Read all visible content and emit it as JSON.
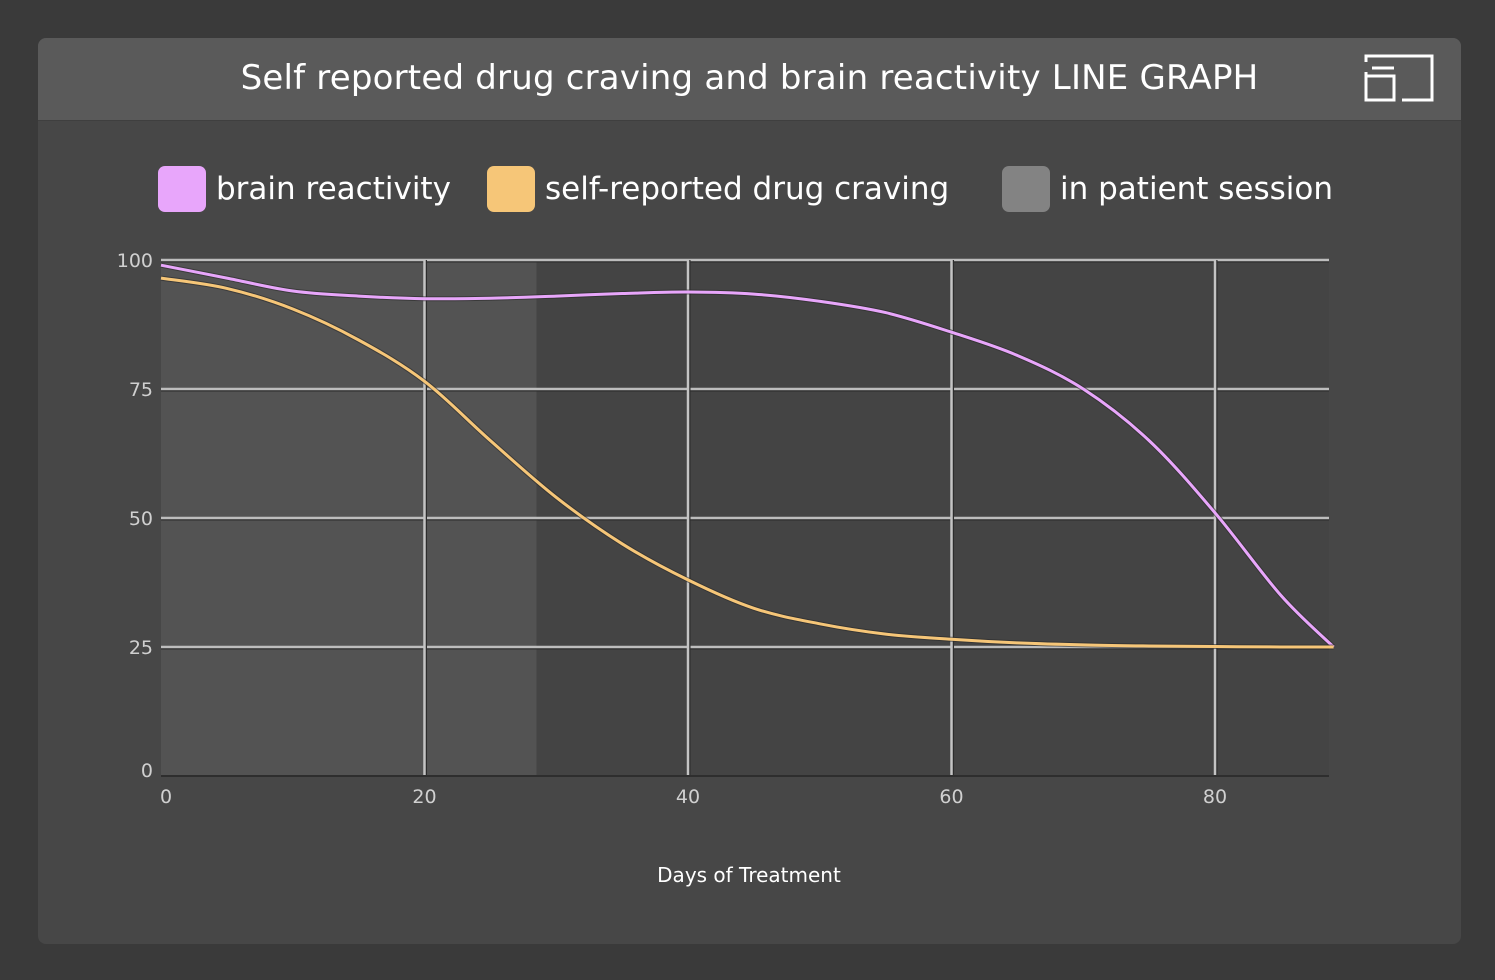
{
  "header": {
    "title": "Self reported drug craving and brain reactivity LINE GRAPH",
    "expand_icon": "expand-icon"
  },
  "colors": {
    "brain": "#e8a6fb",
    "craving": "#f6c678",
    "session": "#838383"
  },
  "chart_data": {
    "type": "line",
    "title": "Self reported drug craving and brain reactivity LINE GRAPH",
    "xlabel": "Days of Treatment",
    "ylabel": "",
    "xlim": [
      0,
      89
    ],
    "ylim": [
      0,
      100
    ],
    "x_ticks": [
      0,
      20,
      40,
      60,
      80
    ],
    "y_ticks": [
      0,
      25,
      50,
      75,
      100
    ],
    "grid": true,
    "legend_position": "top",
    "legend": [
      "brain reactivity",
      "self-reported drug craving",
      "in patient session"
    ],
    "shaded_region": {
      "name": "in patient session",
      "x_start": 0,
      "x_end": 28.5
    },
    "series": [
      {
        "name": "brain reactivity",
        "color": "#e8a6fb",
        "x": [
          0,
          5,
          10,
          15,
          20,
          25,
          30,
          35,
          40,
          45,
          50,
          55,
          60,
          65,
          70,
          75,
          80,
          85,
          89
        ],
        "y": [
          99,
          96.5,
          94,
          93,
          92.5,
          92.6,
          93,
          93.5,
          93.8,
          93.4,
          92,
          89.8,
          86,
          81.5,
          75,
          65,
          51,
          35,
          25
        ]
      },
      {
        "name": "self-reported drug craving",
        "color": "#f6c678",
        "x": [
          0,
          5,
          10,
          15,
          20,
          25,
          30,
          35,
          40,
          45,
          50,
          55,
          60,
          65,
          70,
          75,
          80,
          85,
          89
        ],
        "y": [
          96.5,
          94.5,
          90.5,
          84.5,
          76.5,
          65,
          54,
          45,
          38,
          32.5,
          29.5,
          27.5,
          26.5,
          25.8,
          25.4,
          25.2,
          25.1,
          25,
          25
        ]
      }
    ]
  }
}
